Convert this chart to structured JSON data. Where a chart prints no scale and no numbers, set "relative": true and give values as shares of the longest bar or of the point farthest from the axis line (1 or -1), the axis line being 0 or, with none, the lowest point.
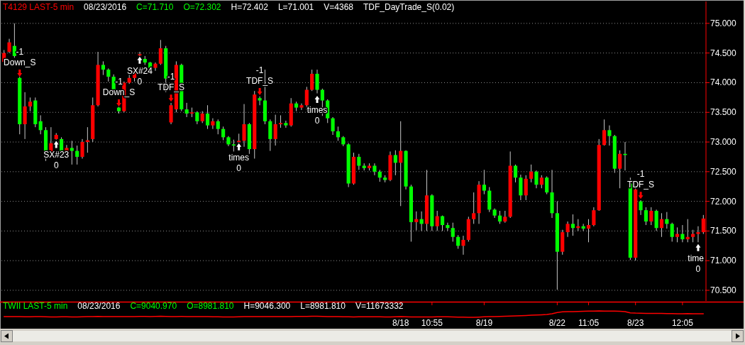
{
  "chart_data": [
    {
      "type": "candlestick",
      "title": "T4129 LAST-5 min",
      "annotations": [
        "08/23/2016",
        "C=71.710",
        "O=72.302",
        "H=72.402",
        "L=71.001",
        "V=4368",
        "TDF_DayTrade_S(0.02)",
        "-1\nDown_S",
        "SX#23\n0",
        "-1\nDown_S",
        "SX#24\n0",
        "-1\nTDF_S",
        "times\n0",
        "-1\nTDF_S",
        "times\n0",
        "-1\nTDF_S",
        "time\n0"
      ],
      "categories": [
        null,
        null,
        null,
        null,
        null,
        null,
        null,
        null,
        null,
        null,
        null,
        null,
        null,
        null,
        null,
        null,
        null,
        null,
        null,
        null,
        null,
        null,
        null,
        null,
        null,
        null,
        null,
        null,
        null,
        null,
        null,
        null,
        null,
        null,
        null,
        null,
        null,
        null,
        null,
        null,
        null,
        null,
        null,
        null,
        null,
        null,
        null,
        null,
        null,
        null,
        null,
        null,
        null,
        null,
        null,
        null,
        null,
        null,
        null,
        null,
        null,
        null,
        null,
        null,
        null,
        null,
        null,
        null,
        null,
        null,
        null,
        null,
        null,
        null,
        null,
        null,
        null,
        null,
        null,
        null,
        null,
        null,
        null,
        null,
        null,
        null,
        null,
        null,
        null,
        null,
        null,
        null,
        null,
        null,
        null,
        null,
        null,
        null,
        null,
        null,
        null,
        null,
        null,
        null,
        null,
        null,
        null,
        null,
        null,
        null,
        null,
        null,
        null,
        null,
        null,
        null,
        null,
        null,
        null,
        null,
        null,
        null,
        null,
        null,
        null,
        null,
        null,
        null,
        null,
        null,
        null,
        null,
        null,
        null,
        null
      ],
      "ohlc": [
        [
          74.35,
          74.55,
          74.3,
          74.5
        ],
        [
          74.52,
          74.74,
          74.5,
          74.68
        ],
        [
          74.62,
          75.0,
          74.42,
          74.45
        ],
        [
          74.08,
          74.1,
          73.13,
          73.3
        ],
        [
          73.3,
          73.84,
          73.05,
          73.6
        ],
        [
          73.6,
          73.75,
          73.52,
          73.68
        ],
        [
          73.7,
          73.75,
          73.25,
          73.3
        ],
        [
          73.35,
          73.45,
          73.13,
          73.2
        ],
        [
          73.2,
          73.25,
          72.68,
          72.8
        ],
        [
          72.82,
          73.25,
          72.78,
          72.98
        ],
        [
          73.05,
          73.15,
          73.04,
          73.12
        ],
        [
          73.05,
          73.08,
          72.74,
          72.8
        ],
        [
          72.8,
          72.95,
          72.72,
          72.9
        ],
        [
          72.9,
          73.02,
          72.62,
          72.85
        ],
        [
          72.85,
          72.94,
          72.62,
          72.75
        ],
        [
          72.75,
          73.05,
          72.72,
          73.0
        ],
        [
          73.0,
          73.25,
          72.82,
          73.03
        ],
        [
          73.05,
          73.75,
          73.0,
          73.62
        ],
        [
          73.62,
          74.52,
          73.6,
          74.3
        ],
        [
          74.3,
          74.36,
          74.13,
          74.22
        ],
        [
          74.22,
          74.24,
          74.02,
          74.1
        ],
        [
          74.1,
          74.14,
          73.84,
          73.88
        ],
        [
          73.58,
          73.59,
          73.48,
          73.52
        ],
        [
          73.52,
          74.02,
          73.5,
          74.0
        ],
        [
          74.0,
          74.15,
          73.98,
          74.08
        ],
        [
          74.08,
          74.24,
          74.02,
          74.2
        ],
        [
          74.46,
          74.52,
          74.45,
          74.48
        ],
        [
          74.4,
          74.45,
          74.3,
          74.34
        ],
        [
          74.34,
          74.35,
          74.2,
          74.25
        ],
        [
          74.25,
          74.34,
          74.2,
          74.32
        ],
        [
          74.32,
          74.72,
          74.3,
          74.58
        ],
        [
          74.58,
          74.62,
          73.84,
          74.07
        ],
        [
          73.33,
          73.66,
          73.3,
          73.62
        ],
        [
          73.55,
          74.36,
          73.5,
          74.3
        ],
        [
          74.3,
          74.32,
          73.52,
          73.55
        ],
        [
          73.55,
          73.66,
          73.42,
          73.48
        ],
        [
          73.48,
          73.58,
          73.42,
          73.5
        ],
        [
          73.5,
          73.52,
          73.3,
          73.35
        ],
        [
          73.35,
          73.52,
          73.32,
          73.48
        ],
        [
          73.48,
          73.62,
          73.22,
          73.28
        ],
        [
          73.28,
          73.4,
          73.22,
          73.35
        ],
        [
          73.35,
          73.38,
          73.13,
          73.22
        ],
        [
          73.22,
          73.26,
          73.03,
          73.08
        ],
        [
          73.08,
          73.1,
          72.93,
          72.96
        ],
        [
          72.96,
          73.04,
          72.84,
          72.94
        ],
        [
          73.0,
          73.14,
          72.99,
          73.02
        ],
        [
          73.02,
          73.64,
          72.92,
          73.3
        ],
        [
          73.3,
          73.32,
          72.8,
          72.88
        ],
        [
          72.88,
          73.86,
          72.72,
          73.8
        ],
        [
          73.74,
          73.77,
          73.62,
          73.7
        ],
        [
          73.7,
          74.22,
          73.3,
          73.35
        ],
        [
          73.35,
          73.38,
          72.85,
          73.05
        ],
        [
          73.05,
          73.46,
          72.94,
          73.3
        ],
        [
          73.3,
          73.45,
          73.24,
          73.32
        ],
        [
          73.32,
          73.36,
          73.24,
          73.28
        ],
        [
          73.28,
          73.74,
          73.26,
          73.65
        ],
        [
          73.65,
          73.68,
          73.52,
          73.58
        ],
        [
          73.58,
          73.65,
          73.54,
          73.62
        ],
        [
          73.62,
          73.93,
          73.54,
          73.88
        ],
        [
          73.88,
          74.22,
          73.86,
          74.15
        ],
        [
          74.15,
          74.22,
          73.82,
          73.88
        ],
        [
          73.88,
          73.9,
          73.44,
          73.7
        ],
        [
          73.7,
          73.72,
          73.32,
          73.4
        ],
        [
          73.4,
          73.42,
          73.12,
          73.18
        ],
        [
          73.18,
          73.26,
          73.02,
          73.08
        ],
        [
          73.08,
          73.1,
          72.93,
          72.96
        ],
        [
          72.96,
          72.98,
          72.24,
          72.3
        ],
        [
          72.3,
          72.82,
          72.28,
          72.75
        ],
        [
          72.75,
          72.8,
          72.53,
          72.6
        ],
        [
          72.6,
          72.64,
          72.52,
          72.56
        ],
        [
          72.56,
          72.64,
          72.52,
          72.6
        ],
        [
          72.6,
          72.64,
          72.44,
          72.5
        ],
        [
          72.5,
          72.53,
          72.33,
          72.4
        ],
        [
          72.4,
          72.44,
          72.32,
          72.36
        ],
        [
          72.36,
          72.84,
          72.34,
          72.78
        ],
        [
          72.78,
          72.86,
          72.44,
          72.65
        ],
        [
          72.65,
          73.35,
          71.92,
          72.85
        ],
        [
          72.85,
          72.86,
          72.2,
          72.25
        ],
        [
          72.25,
          72.28,
          71.32,
          71.65
        ],
        [
          71.65,
          71.83,
          71.51,
          71.7
        ],
        [
          71.7,
          71.83,
          71.5,
          71.62
        ],
        [
          71.62,
          72.53,
          71.5,
          72.1
        ],
        [
          72.1,
          72.12,
          71.5,
          71.58
        ],
        [
          71.58,
          71.84,
          71.5,
          71.75
        ],
        [
          71.75,
          71.76,
          71.5,
          71.6
        ],
        [
          71.6,
          71.64,
          71.5,
          71.55
        ],
        [
          71.55,
          71.64,
          71.32,
          71.4
        ],
        [
          71.4,
          71.43,
          71.2,
          71.25
        ],
        [
          71.25,
          71.42,
          71.1,
          71.35
        ],
        [
          71.35,
          71.74,
          71.32,
          71.7
        ],
        [
          71.7,
          72.15,
          71.62,
          71.8
        ],
        [
          71.8,
          72.34,
          71.62,
          72.28
        ],
        [
          72.28,
          72.53,
          72.12,
          72.18
        ],
        [
          72.18,
          72.24,
          71.82,
          71.86
        ],
        [
          71.86,
          71.88,
          71.72,
          71.76
        ],
        [
          71.76,
          71.84,
          71.62,
          71.66
        ],
        [
          71.66,
          71.84,
          71.64,
          71.74
        ],
        [
          71.74,
          72.84,
          71.72,
          72.6
        ],
        [
          72.6,
          72.62,
          72.32,
          72.4
        ],
        [
          72.4,
          72.45,
          72.02,
          72.1
        ],
        [
          72.1,
          72.44,
          72.02,
          72.38
        ],
        [
          72.38,
          72.62,
          72.32,
          72.5
        ],
        [
          72.5,
          72.52,
          72.22,
          72.28
        ],
        [
          72.28,
          72.44,
          72.22,
          72.4
        ],
        [
          72.4,
          72.42,
          72.12,
          72.15
        ],
        [
          72.15,
          72.53,
          71.72,
          71.8
        ],
        [
          71.8,
          72.0,
          70.51,
          71.15
        ],
        [
          71.15,
          71.52,
          71.1,
          71.48
        ],
        [
          71.48,
          71.66,
          71.4,
          71.62
        ],
        [
          71.62,
          71.78,
          71.42,
          71.55
        ],
        [
          71.55,
          71.7,
          71.5,
          71.58
        ],
        [
          71.58,
          71.62,
          71.5,
          71.54
        ],
        [
          71.54,
          71.7,
          71.31,
          71.6
        ],
        [
          71.6,
          71.9,
          71.58,
          71.85
        ],
        [
          71.85,
          73.05,
          71.84,
          72.95
        ],
        [
          72.95,
          73.38,
          72.94,
          73.2
        ],
        [
          73.2,
          73.28,
          72.94,
          73.1
        ],
        [
          73.1,
          73.12,
          72.48,
          72.55
        ],
        [
          72.55,
          72.86,
          72.22,
          72.8
        ],
        [
          72.8,
          73.0,
          72.52,
          72.78
        ],
        [
          72.3,
          72.4,
          71.01,
          71.05
        ],
        [
          71.05,
          72.26,
          71.0,
          72.2
        ],
        [
          72.0,
          72.02,
          71.77,
          71.85
        ],
        [
          71.85,
          71.9,
          71.6,
          71.66
        ],
        [
          71.66,
          71.9,
          71.6,
          71.84
        ],
        [
          71.84,
          71.86,
          71.5,
          71.55
        ],
        [
          71.55,
          71.8,
          71.4,
          71.7
        ],
        [
          71.7,
          71.82,
          71.54,
          71.62
        ],
        [
          71.62,
          71.64,
          71.32,
          71.4
        ],
        [
          71.4,
          71.56,
          71.31,
          71.45
        ],
        [
          71.45,
          71.6,
          71.31,
          71.36
        ],
        [
          71.36,
          71.7,
          71.31,
          71.4
        ],
        [
          71.4,
          71.52,
          71.31,
          71.45
        ],
        [
          71.45,
          71.58,
          71.31,
          71.48
        ],
        [
          71.48,
          71.77,
          71.45,
          71.71
        ]
      ],
      "series": [
        {
          "type": "scatter",
          "color": "#ff0000",
          "marker": "triangle",
          "values": [
            null,
            null,
            null,
            74.16,
            null,
            null,
            null,
            null,
            null,
            null,
            null,
            null,
            null,
            null,
            null,
            null,
            null,
            null,
            null,
            null,
            null,
            null,
            73.66,
            null,
            null,
            null,
            null,
            null,
            null,
            null,
            null,
            null,
            73.74,
            null,
            null,
            null,
            null,
            null,
            null,
            null,
            null,
            null,
            null,
            null,
            null,
            null,
            null,
            null,
            null,
            73.85,
            null,
            null,
            null,
            null,
            null,
            null,
            null,
            null,
            null,
            null,
            null,
            null,
            null,
            null,
            null,
            null,
            null,
            null,
            null,
            null,
            null,
            null,
            null,
            null,
            null,
            null,
            null,
            null,
            null,
            null,
            null,
            null,
            null,
            null,
            null,
            null,
            null,
            null,
            null,
            null,
            null,
            null,
            null,
            null,
            null,
            null,
            null,
            null,
            null,
            null,
            null,
            null,
            null,
            null,
            null,
            null,
            null,
            null,
            null,
            null,
            null,
            null,
            null,
            null,
            null,
            null,
            null,
            null,
            null,
            null,
            null,
            null,
            72.1,
            null,
            null,
            null,
            null,
            null,
            null,
            null,
            null,
            null,
            null,
            null,
            null
          ]
        },
        {
          "type": "scatter",
          "color": "#ffffff",
          "marker": "triangle",
          "values": [
            null,
            null,
            null,
            null,
            null,
            null,
            null,
            null,
            null,
            null,
            72.96,
            null,
            null,
            null,
            null,
            null,
            null,
            null,
            null,
            null,
            null,
            null,
            null,
            null,
            null,
            null,
            74.38,
            null,
            null,
            null,
            null,
            null,
            null,
            null,
            null,
            null,
            null,
            null,
            null,
            null,
            null,
            null,
            null,
            null,
            null,
            72.92,
            null,
            null,
            null,
            null,
            null,
            null,
            null,
            null,
            null,
            null,
            null,
            null,
            null,
            null,
            73.72,
            null,
            null,
            null,
            null,
            null,
            null,
            null,
            null,
            null,
            null,
            null,
            null,
            null,
            null,
            null,
            null,
            null,
            null,
            null,
            null,
            null,
            null,
            null,
            null,
            null,
            null,
            null,
            null,
            null,
            null,
            null,
            null,
            null,
            null,
            null,
            null,
            null,
            null,
            null,
            null,
            null,
            null,
            null,
            null,
            null,
            null,
            null,
            null,
            null,
            null,
            null,
            null,
            null,
            null,
            null,
            null,
            null,
            null,
            null,
            null,
            null,
            null,
            null,
            null,
            null,
            null,
            null,
            null,
            null,
            null,
            null,
            null,
            71.22,
            null
          ]
        }
      ],
      "ylim": [
        70.32,
        75.37
      ],
      "yticks": [
        {
          "value": 70.5,
          "label": "70.500"
        },
        {
          "value": 71,
          "label": "71.000"
        },
        {
          "value": 71.5,
          "label": "71.500"
        },
        {
          "value": 72,
          "label": "72.000"
        },
        {
          "value": 72.5,
          "label": "72.500"
        },
        {
          "value": 73,
          "label": "73.000"
        },
        {
          "value": 73.5,
          "label": "73.500"
        },
        {
          "value": 74,
          "label": "74.000"
        },
        {
          "value": 74.5,
          "label": "74.500"
        },
        {
          "value": 75,
          "label": "75.000"
        }
      ],
      "grid": "y",
      "tick_labels": "y"
    },
    {
      "type": "line",
      "title": "TWII LAST-5 min",
      "annotations": [
        "08/23/2016",
        "C=9040.970",
        "O=8981.810",
        "H=9046.300",
        "L=8981.810",
        "V=11673332"
      ],
      "relative": true,
      "categories": [
        null,
        null,
        null,
        null,
        null,
        null,
        null,
        null,
        null,
        null,
        null,
        null,
        null,
        null,
        null,
        null,
        null,
        null,
        null,
        null,
        null,
        null,
        null,
        null,
        null,
        null,
        null,
        null,
        null,
        null,
        null,
        null,
        null,
        null,
        null,
        null,
        null,
        null,
        null,
        null,
        null,
        null,
        null,
        null,
        null,
        null,
        null,
        null,
        null,
        null,
        null,
        null,
        null,
        null,
        null,
        null,
        null,
        null,
        null,
        null,
        null,
        null,
        null,
        null,
        null,
        null,
        null,
        null,
        null,
        null,
        null,
        null,
        null,
        null,
        null,
        null,
        "8/18",
        null,
        null,
        null,
        null,
        null,
        "10:55",
        null,
        null,
        null,
        null,
        null,
        null,
        null,
        null,
        null,
        "8/19",
        null,
        null,
        null,
        null,
        null,
        null,
        null,
        null,
        null,
        null,
        null,
        null,
        null,
        "8/22",
        null,
        null,
        null,
        null,
        null,
        "11:05",
        null,
        null,
        null,
        null,
        null,
        null,
        null,
        null,
        "8/23",
        null,
        null,
        null,
        null,
        null,
        null,
        null,
        null,
        "12:05",
        null,
        null,
        null,
        null
      ],
      "series": [
        {
          "color": "#ff0000",
          "values": [
            0.1,
            0.1,
            0.12,
            0.1,
            0.08,
            0.08,
            0.1,
            0.1,
            0.08,
            0.06,
            0.06,
            0.08,
            0.08,
            0.06,
            0.06,
            0.08,
            0.1,
            0.12,
            0.14,
            0.12,
            0.12,
            0.1,
            0.1,
            0.1,
            0.12,
            0.12,
            0.14,
            0.14,
            0.12,
            0.14,
            0.16,
            0.14,
            0.12,
            0.12,
            0.14,
            0.12,
            0.12,
            0.1,
            0.1,
            0.1,
            0.08,
            0.08,
            0.06,
            0.06,
            0.06,
            0.08,
            0.1,
            0.12,
            0.12,
            0.1,
            0.1,
            0.1,
            0.1,
            0.12,
            0.12,
            0.12,
            0.14,
            0.14,
            0.14,
            0.16,
            0.16,
            0.14,
            0.12,
            0.1,
            0.1,
            0.08,
            0.08,
            0.06,
            0.08,
            0.08,
            0.08,
            0.08,
            0.08,
            0.06,
            0.06,
            0.08,
            0.1,
            0.08,
            0.06,
            0.06,
            0.06,
            0.06,
            0.06,
            0.08,
            0.08,
            0.08,
            0.06,
            0.04,
            0.02,
            0.0,
            0.0,
            0.04,
            0.08,
            0.1,
            0.12,
            0.15,
            0.18,
            0.2,
            0.22,
            0.25,
            0.28,
            0.32,
            0.36,
            0.4,
            0.45,
            0.55,
            0.75,
            0.85,
            0.88,
            0.9,
            0.92,
            0.95,
            0.96,
            0.98,
            1.0,
            0.98,
            0.96,
            0.96,
            0.94,
            0.9,
            0.7,
            0.66,
            0.64,
            0.62,
            0.62,
            0.6,
            0.6,
            0.58,
            0.58,
            0.56,
            0.56,
            0.58,
            0.56,
            0.56,
            0.55
          ]
        }
      ],
      "tick_labels": "x"
    }
  ]
}
